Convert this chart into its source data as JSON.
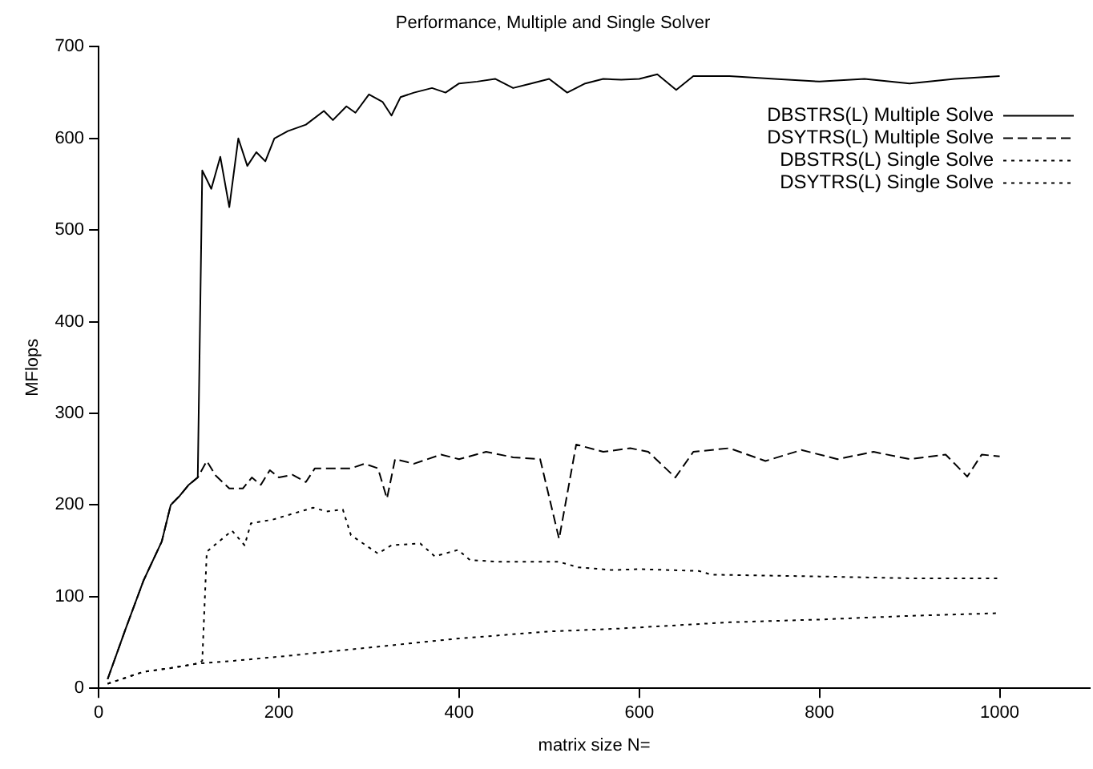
{
  "chart_data": {
    "type": "line",
    "title": "Performance, Multiple and Single Solver",
    "xlabel": "matrix size N=",
    "ylabel": "MFlops",
    "xlim": [
      0,
      1100
    ],
    "xticks": [
      0,
      200,
      400,
      600,
      800,
      1000
    ],
    "ylim": [
      0,
      700
    ],
    "yticks": [
      0,
      100,
      200,
      300,
      400,
      500,
      600,
      700
    ],
    "grid": false,
    "legend": "top right",
    "marker": "none",
    "series": [
      {
        "name": "DBSTRS(L) Multiple Solve",
        "color": "#000000",
        "line_style": "solid",
        "x": [
          10,
          30,
          50,
          70,
          80,
          90,
          100,
          110,
          115,
          125,
          135,
          145,
          155,
          165,
          175,
          185,
          195,
          210,
          230,
          250,
          260,
          275,
          285,
          300,
          315,
          325,
          335,
          350,
          370,
          385,
          400,
          420,
          440,
          460,
          480,
          500,
          520,
          540,
          560,
          580,
          600,
          620,
          641,
          660,
          700,
          750,
          800,
          850,
          900,
          950,
          1000
        ],
        "values": [
          10,
          65,
          118,
          160,
          200,
          210,
          222,
          230,
          565,
          545,
          580,
          525,
          600,
          570,
          585,
          575,
          600,
          608,
          615,
          630,
          620,
          635,
          628,
          648,
          640,
          625,
          645,
          650,
          655,
          650,
          660,
          662,
          665,
          655,
          660,
          665,
          650,
          660,
          665,
          664,
          665,
          670,
          653,
          668,
          668,
          665,
          662,
          665,
          660,
          665,
          668
        ]
      },
      {
        "name": "DSYTRS(L) Multiple Solve",
        "color": "#000000",
        "line_style": "dashed",
        "x": [
          10,
          30,
          50,
          70,
          80,
          90,
          100,
          110,
          120,
          130,
          145,
          160,
          170,
          180,
          190,
          200,
          215,
          230,
          240,
          260,
          280,
          295,
          310,
          320,
          329,
          350,
          380,
          400,
          430,
          460,
          490,
          511,
          530,
          560,
          590,
          610,
          640,
          660,
          700,
          740,
          780,
          820,
          860,
          900,
          940,
          964,
          980,
          1000
        ],
        "values": [
          10,
          65,
          118,
          160,
          200,
          210,
          222,
          230,
          248,
          232,
          218,
          218,
          230,
          222,
          238,
          230,
          233,
          225,
          240,
          240,
          240,
          245,
          240,
          207,
          250,
          245,
          255,
          250,
          258,
          252,
          250,
          163,
          266,
          258,
          262,
          258,
          230,
          258,
          262,
          248,
          260,
          250,
          258,
          250,
          255,
          231,
          255,
          253
        ]
      },
      {
        "name": "DBSTRS(L) Single Solve",
        "color": "#000000",
        "line_style": "dotted",
        "x": [
          10,
          50,
          80,
          110,
          115,
          120,
          148,
          162,
          169,
          193,
          238,
          253,
          271,
          280,
          310,
          325,
          357,
          373,
          399,
          412,
          445,
          511,
          532,
          570,
          600,
          666,
          680,
          800,
          900,
          1000
        ],
        "values": [
          5,
          18,
          22,
          27,
          30,
          149,
          172,
          156,
          180,
          184,
          197,
          193,
          195,
          167,
          147,
          156,
          158,
          144,
          151,
          140,
          138,
          138,
          132,
          129,
          130,
          128,
          124,
          122,
          120,
          120
        ]
      },
      {
        "name": "DSYTRS(L) Single Solve",
        "color": "#000000",
        "line_style": "dotted",
        "x": [
          10,
          50,
          80,
          110,
          150,
          206,
          306,
          396,
          500,
          575,
          700,
          800,
          900,
          1000
        ],
        "values": [
          5,
          18,
          22,
          27,
          30,
          35,
          45,
          54,
          62,
          65,
          72,
          75,
          79,
          82
        ]
      }
    ]
  }
}
